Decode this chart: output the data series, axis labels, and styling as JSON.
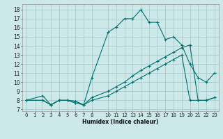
{
  "title": "",
  "xlabel": "Humidex (Indice chaleur)",
  "background_color": "#cde8e8",
  "grid_color": "#aacccc",
  "line_color": "#007070",
  "xlim": [
    -0.5,
    23.5
  ],
  "ylim": [
    6.8,
    18.6
  ],
  "yticks": [
    7,
    8,
    9,
    10,
    11,
    12,
    13,
    14,
    15,
    16,
    17,
    18
  ],
  "xtick_positions": [
    0,
    1,
    2,
    3,
    4,
    5,
    6,
    7,
    8,
    10,
    11,
    12,
    13,
    14,
    15,
    16,
    17,
    18,
    19,
    20,
    21,
    22,
    23
  ],
  "xtick_labels": [
    "0",
    "1",
    "2",
    "3",
    "4",
    "5",
    "6",
    "7",
    "8",
    "10",
    "11",
    "12",
    "13",
    "14",
    "15",
    "16",
    "17",
    "18",
    "19",
    "20",
    "21",
    "22",
    "23"
  ],
  "curve1_x": [
    0,
    2,
    3,
    4,
    5,
    6,
    7,
    8,
    10,
    11,
    12,
    13,
    14,
    15,
    16,
    17,
    18,
    19,
    20,
    21,
    22,
    23
  ],
  "curve1_y": [
    8,
    8.5,
    7.5,
    8.0,
    8.0,
    7.7,
    7.5,
    10.5,
    15.5,
    16.1,
    17.0,
    17.0,
    18.0,
    16.6,
    16.6,
    14.7,
    15.0,
    14.1,
    12.0,
    10.5,
    10.0,
    11.0
  ],
  "curve2_x": [
    0,
    2,
    3,
    4,
    5,
    6,
    7,
    8,
    10,
    11,
    12,
    13,
    14,
    15,
    16,
    17,
    18,
    19,
    20,
    21,
    22,
    23
  ],
  "curve2_y": [
    8,
    8,
    7.5,
    8.0,
    8.0,
    7.9,
    7.5,
    8.3,
    9.0,
    9.5,
    10.0,
    10.7,
    11.3,
    11.8,
    12.3,
    12.8,
    13.3,
    13.8,
    14.1,
    8.0,
    8.0,
    8.3
  ],
  "curve3_x": [
    0,
    2,
    3,
    4,
    5,
    6,
    7,
    8,
    10,
    11,
    12,
    13,
    14,
    15,
    16,
    17,
    18,
    19,
    20,
    21,
    22,
    23
  ],
  "curve3_y": [
    8,
    8,
    7.5,
    8.0,
    8.0,
    7.9,
    7.5,
    8.0,
    8.5,
    9.0,
    9.5,
    10.0,
    10.5,
    11.0,
    11.5,
    12.0,
    12.5,
    13.0,
    8.0,
    8.0,
    8.0,
    8.3
  ]
}
